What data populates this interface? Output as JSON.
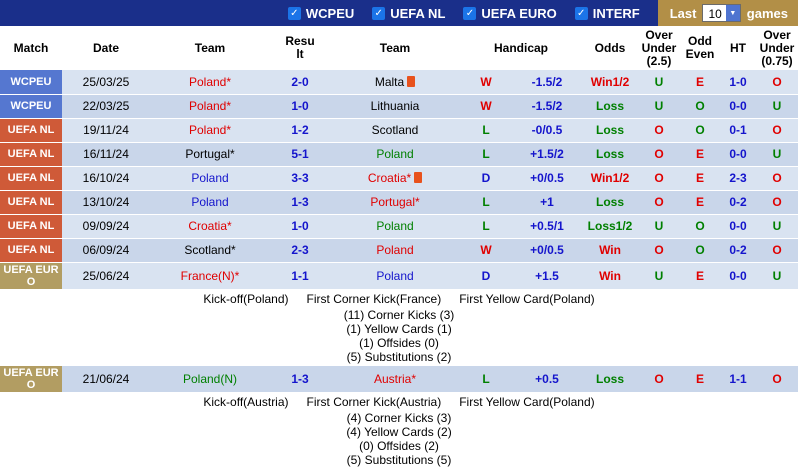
{
  "topbar": {
    "competitions": [
      {
        "label": "WCPEU",
        "checked": true
      },
      {
        "label": "UEFA NL",
        "checked": true
      },
      {
        "label": "UEFA EURO",
        "checked": true
      },
      {
        "label": "INTERF",
        "checked": true
      }
    ],
    "last_label": "Last",
    "games_count": "10",
    "games_label": "games"
  },
  "colors": {
    "topbar_bg": "#1a2f8a",
    "gold_bg": "#b28f47",
    "checkbox_bg": "#1b74e8",
    "select_btn": "#4f74d0",
    "red": "#e00000",
    "green": "#008000",
    "blue": "#1414cc",
    "black": "#000000",
    "red_card": "#e8521d",
    "bg_wcpeu": "#5577d0",
    "bg_uefa_nl": "#cf5a38",
    "bg_uefa_euro": "#b29d62",
    "row_light": "#d9e3f1",
    "row_dark": "#c9d6ea"
  },
  "table": {
    "headers": [
      "Match",
      "Date",
      "Team",
      "Result",
      "Team",
      "Handicap",
      "Odds",
      "Over Under (2.5)",
      "Odd Even",
      "HT",
      "Over Under (0.75)"
    ],
    "rows": [
      {
        "type": "match",
        "competition": "WCPEU",
        "competition_key": "wcpeu",
        "date": "25/03/25",
        "home": {
          "name": "Poland*",
          "color": "red"
        },
        "score": "2-0",
        "away": {
          "name": "Malta",
          "color": "black",
          "red_card": true
        },
        "outcome": {
          "text": "W",
          "color": "red"
        },
        "handicap": "-1.5/2",
        "odds": {
          "text": "Win1/2",
          "color": "red"
        },
        "over_under_2_5": {
          "text": "U",
          "color": "green"
        },
        "odd_even": {
          "text": "E",
          "color": "red"
        },
        "ht": "1-0",
        "over_under_0_75": {
          "text": "O",
          "color": "red"
        }
      },
      {
        "type": "match",
        "competition": "WCPEU",
        "competition_key": "wcpeu",
        "date": "22/03/25",
        "home": {
          "name": "Poland*",
          "color": "red"
        },
        "score": "1-0",
        "away": {
          "name": "Lithuania",
          "color": "black"
        },
        "outcome": {
          "text": "W",
          "color": "red"
        },
        "handicap": "-1.5/2",
        "odds": {
          "text": "Loss",
          "color": "green"
        },
        "over_under_2_5": {
          "text": "U",
          "color": "green"
        },
        "odd_even": {
          "text": "O",
          "color": "green"
        },
        "ht": "0-0",
        "over_under_0_75": {
          "text": "U",
          "color": "green"
        }
      },
      {
        "type": "match",
        "competition": "UEFA NL",
        "competition_key": "uefa_nl",
        "date": "19/11/24",
        "home": {
          "name": "Poland*",
          "color": "red"
        },
        "score": "1-2",
        "away": {
          "name": "Scotland",
          "color": "black"
        },
        "outcome": {
          "text": "L",
          "color": "green"
        },
        "handicap": "-0/0.5",
        "odds": {
          "text": "Loss",
          "color": "green"
        },
        "over_under_2_5": {
          "text": "O",
          "color": "red"
        },
        "odd_even": {
          "text": "O",
          "color": "green"
        },
        "ht": "0-1",
        "over_under_0_75": {
          "text": "O",
          "color": "red"
        }
      },
      {
        "type": "match",
        "competition": "UEFA NL",
        "competition_key": "uefa_nl",
        "date": "16/11/24",
        "home": {
          "name": "Portugal*",
          "color": "black"
        },
        "score": "5-1",
        "away": {
          "name": "Poland",
          "color": "green"
        },
        "outcome": {
          "text": "L",
          "color": "green"
        },
        "handicap": "+1.5/2",
        "odds": {
          "text": "Loss",
          "color": "green"
        },
        "over_under_2_5": {
          "text": "O",
          "color": "red"
        },
        "odd_even": {
          "text": "E",
          "color": "red"
        },
        "ht": "0-0",
        "over_under_0_75": {
          "text": "U",
          "color": "green"
        }
      },
      {
        "type": "match",
        "competition": "UEFA NL",
        "competition_key": "uefa_nl",
        "date": "16/10/24",
        "home": {
          "name": "Poland",
          "color": "blue"
        },
        "score": "3-3",
        "away": {
          "name": "Croatia*",
          "color": "red",
          "red_card": true
        },
        "outcome": {
          "text": "D",
          "color": "blue"
        },
        "handicap": "+0/0.5",
        "odds": {
          "text": "Win1/2",
          "color": "red"
        },
        "over_under_2_5": {
          "text": "O",
          "color": "red"
        },
        "odd_even": {
          "text": "E",
          "color": "red"
        },
        "ht": "2-3",
        "over_under_0_75": {
          "text": "O",
          "color": "red"
        }
      },
      {
        "type": "match",
        "competition": "UEFA NL",
        "competition_key": "uefa_nl",
        "date": "13/10/24",
        "home": {
          "name": "Poland",
          "color": "blue"
        },
        "score": "1-3",
        "away": {
          "name": "Portugal*",
          "color": "red"
        },
        "outcome": {
          "text": "L",
          "color": "green"
        },
        "handicap": "+1",
        "odds": {
          "text": "Loss",
          "color": "green"
        },
        "over_under_2_5": {
          "text": "O",
          "color": "red"
        },
        "odd_even": {
          "text": "E",
          "color": "red"
        },
        "ht": "0-2",
        "over_under_0_75": {
          "text": "O",
          "color": "red"
        }
      },
      {
        "type": "match",
        "competition": "UEFA NL",
        "competition_key": "uefa_nl",
        "date": "09/09/24",
        "home": {
          "name": "Croatia*",
          "color": "red"
        },
        "score": "1-0",
        "away": {
          "name": "Poland",
          "color": "green"
        },
        "outcome": {
          "text": "L",
          "color": "green"
        },
        "handicap": "+0.5/1",
        "odds": {
          "text": "Loss1/2",
          "color": "green"
        },
        "over_under_2_5": {
          "text": "U",
          "color": "green"
        },
        "odd_even": {
          "text": "O",
          "color": "green"
        },
        "ht": "0-0",
        "over_under_0_75": {
          "text": "U",
          "color": "green"
        }
      },
      {
        "type": "match",
        "competition": "UEFA NL",
        "competition_key": "uefa_nl",
        "date": "06/09/24",
        "home": {
          "name": "Scotland*",
          "color": "black"
        },
        "score": "2-3",
        "away": {
          "name": "Poland",
          "color": "red"
        },
        "outcome": {
          "text": "W",
          "color": "red"
        },
        "handicap": "+0/0.5",
        "odds": {
          "text": "Win",
          "color": "red"
        },
        "over_under_2_5": {
          "text": "O",
          "color": "red"
        },
        "odd_even": {
          "text": "O",
          "color": "green"
        },
        "ht": "0-2",
        "over_under_0_75": {
          "text": "O",
          "color": "red"
        }
      },
      {
        "type": "match",
        "competition": "UEFA EURO",
        "competition_key": "uefa_euro",
        "date": "25/06/24",
        "home": {
          "name": "France(N)*",
          "color": "red"
        },
        "score": "1-1",
        "away": {
          "name": "Poland",
          "color": "blue"
        },
        "outcome": {
          "text": "D",
          "color": "blue"
        },
        "handicap": "+1.5",
        "odds": {
          "text": "Win",
          "color": "red"
        },
        "over_under_2_5": {
          "text": "U",
          "color": "green"
        },
        "odd_even": {
          "text": "E",
          "color": "red"
        },
        "ht": "0-0",
        "over_under_0_75": {
          "text": "U",
          "color": "green"
        }
      },
      {
        "type": "detail",
        "firsts": [
          "Kick-off(Poland)",
          "First Corner Kick(France)",
          "First Yellow Card(Poland)"
        ],
        "stats": [
          "(11) Corner Kicks (3)",
          "(1) Yellow Cards (1)",
          "(1) Offsides (0)",
          "(5) Substitutions (2)"
        ]
      },
      {
        "type": "match",
        "competition": "UEFA EURO",
        "competition_key": "uefa_euro",
        "date": "21/06/24",
        "home": {
          "name": "Poland(N)",
          "color": "green"
        },
        "score": "1-3",
        "away": {
          "name": "Austria*",
          "color": "red"
        },
        "outcome": {
          "text": "L",
          "color": "green"
        },
        "handicap": "+0.5",
        "odds": {
          "text": "Loss",
          "color": "green"
        },
        "over_under_2_5": {
          "text": "O",
          "color": "red"
        },
        "odd_even": {
          "text": "E",
          "color": "red"
        },
        "ht": "1-1",
        "over_under_0_75": {
          "text": "O",
          "color": "red"
        }
      },
      {
        "type": "detail",
        "firsts": [
          "Kick-off(Austria)",
          "First Corner Kick(Austria)",
          "First Yellow Card(Poland)"
        ],
        "stats": [
          "(4) Corner Kicks (3)",
          "(4) Yellow Cards (2)",
          "(0) Offsides (2)",
          "(5) Substitutions (5)"
        ]
      }
    ]
  }
}
